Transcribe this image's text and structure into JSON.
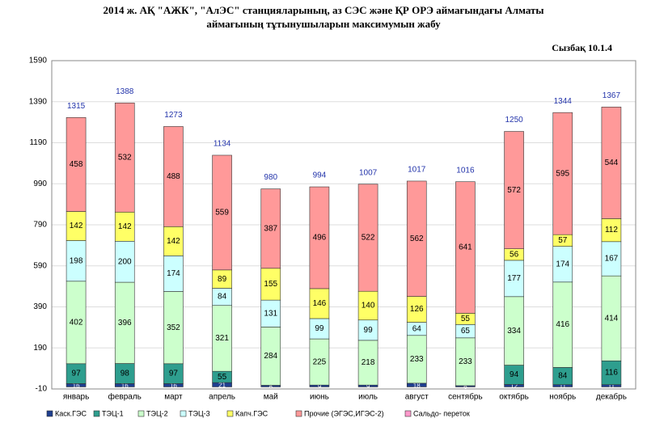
{
  "chart_data": {
    "type": "stacked_bar",
    "title": [
      "2014 ж. АҚ \"АЖК\", \"АлЭС\" станцияларының, аз СЭС және ҚР ОРЭ аймағындағы Алматы",
      "аймағының тұтынушыларын максимумын жабу"
    ],
    "subtitle": "Сызбақ 10.1.4",
    "categories": [
      "январь",
      "февраль",
      "март",
      "апрель",
      "май",
      "июнь",
      "июль",
      "август",
      "сентябрь",
      "октябрь",
      "ноябрь",
      "декабрь"
    ],
    "series": [
      {
        "name": "Каск.ГЭС",
        "color": "#1f3f8f",
        "values": [
          16,
          16,
          16,
          21,
          8,
          9,
          9,
          18,
          6,
          12,
          11,
          11
        ]
      },
      {
        "name": "ТЭЦ-1",
        "color": "#2e9e8e",
        "values": [
          97,
          98,
          97,
          55,
          null,
          null,
          null,
          null,
          null,
          94,
          84,
          116
        ]
      },
      {
        "name": "ТЭЦ-2",
        "color": "#ccffcc",
        "values": [
          402,
          396,
          352,
          321,
          284,
          225,
          218,
          233,
          233,
          334,
          416,
          414
        ]
      },
      {
        "name": "ТЭЦ-3",
        "color": "#ccffff",
        "values": [
          198,
          200,
          174,
          84,
          131,
          99,
          99,
          64,
          65,
          177,
          174,
          167
        ]
      },
      {
        "name": "Капч.ГЭС",
        "color": "#ffff66",
        "values": [
          142,
          142,
          142,
          89,
          155,
          146,
          140,
          126,
          55,
          56,
          57,
          112
        ]
      },
      {
        "name": "Прочие  (ЭГЭС,ИГЭС-2)",
        "color": "#ff9999",
        "values": [
          458,
          532,
          488,
          559,
          387,
          496,
          522,
          562,
          641,
          572,
          595,
          544
        ]
      },
      {
        "name": "Сальдо- переток",
        "color": "#ff99cc",
        "values": [
          null,
          null,
          null,
          null,
          null,
          null,
          null,
          null,
          null,
          null,
          null,
          null
        ]
      }
    ],
    "totals": [
      1315,
      1388,
      1273,
      1134,
      980,
      994,
      1007,
      1017,
      1016,
      1250,
      1344,
      1367
    ],
    "ylim": [
      -10,
      1590
    ],
    "yticks": [
      -10,
      190,
      390,
      590,
      790,
      990,
      1190,
      1390,
      1590
    ],
    "grid": true
  }
}
